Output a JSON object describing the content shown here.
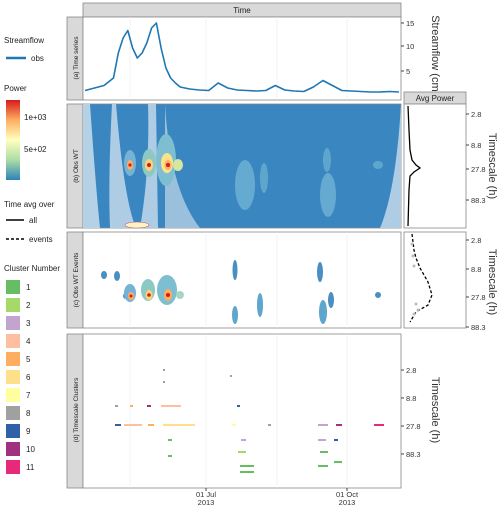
{
  "legend": {
    "streamflow": {
      "title": "Streamflow",
      "entry": "obs",
      "color": "#1f77b4"
    },
    "power": {
      "title": "Power",
      "ticks": [
        "1e+03",
        "5e+02"
      ],
      "colors": [
        "#d7191c",
        "#fdae61",
        "#ffffbf",
        "#abdda4",
        "#2b83ba"
      ]
    },
    "avg": {
      "title": "Time avg over",
      "entries": [
        "all",
        "events"
      ]
    },
    "clusters": {
      "title": "Cluster Number",
      "items": [
        {
          "label": "1",
          "color": "#66bd63"
        },
        {
          "label": "2",
          "color": "#a6d96a"
        },
        {
          "label": "3",
          "color": "#c2a5cf"
        },
        {
          "label": "4",
          "color": "#fdbf9f"
        },
        {
          "label": "5",
          "color": "#fdae61"
        },
        {
          "label": "6",
          "color": "#fee08b"
        },
        {
          "label": "7",
          "color": "#ffffa0"
        },
        {
          "label": "8",
          "color": "#a0a0a0"
        },
        {
          "label": "9",
          "color": "#3060a8"
        },
        {
          "label": "10",
          "color": "#a03080"
        },
        {
          "label": "11",
          "color": "#e8287a"
        }
      ]
    }
  },
  "panels": {
    "time_strip": "Time",
    "avg_strip": "Avg Power",
    "a": {
      "strip": "(a) Time series",
      "ylabel": "Streamflow (cms)",
      "ticks": [
        "15",
        "10",
        "5"
      ]
    },
    "b": {
      "strip": "(b) Obs WT",
      "ylabel": "Timescale (h)",
      "ticks": [
        "2.8",
        "8.8",
        "27.8",
        "88.3"
      ]
    },
    "c": {
      "strip": "(c) Obs WT Events",
      "ylabel": "Timescale (h)",
      "ticks": [
        "2.8",
        "8.8",
        "27.8",
        "88.3"
      ]
    },
    "d": {
      "strip": "(d) Timescale Clusters",
      "ylabel": "Timescale (h)",
      "ticks": [
        "2.8",
        "8.8",
        "27.8",
        "88.3"
      ]
    },
    "xticks": [
      {
        "line1": "01 Jul",
        "line2": "2013"
      },
      {
        "line1": "01 Oct",
        "line2": "2013"
      }
    ]
  },
  "chart_data": [
    {
      "type": "line",
      "series": [
        {
          "name": "obs",
          "values_x_day": [
            0,
            10,
            20,
            30,
            35,
            40,
            45,
            50,
            55,
            60,
            65,
            70,
            75,
            80,
            85,
            90,
            95,
            100,
            105,
            110,
            120,
            130,
            140,
            150,
            160,
            170,
            180,
            190,
            200,
            210,
            220,
            230,
            240,
            250,
            260,
            270,
            280,
            290,
            300,
            310,
            320,
            330
          ],
          "values": [
            1.5,
            2,
            2.5,
            4,
            9,
            12,
            13.5,
            10,
            8,
            9,
            11,
            14,
            15,
            10,
            6,
            4,
            3,
            2.2,
            2,
            1.8,
            1.6,
            1.5,
            3,
            2,
            1.6,
            1.5,
            1.4,
            1.5,
            2.5,
            1.6,
            1.4,
            1.3,
            2.2,
            3.5,
            2.5,
            1.5,
            1.4,
            1.3,
            1.2,
            1.2,
            1.3,
            1.2
          ]
        }
      ],
      "ylim": [
        0,
        16
      ]
    },
    {
      "type": "heatmap",
      "note_timescale_axis": "log",
      "avg_power_all_peak_at_h": 27.8
    },
    {
      "type": "heatmap",
      "avg_power_events_peak_at_h": 27.8
    },
    {
      "type": "scatter",
      "clusters_present": [
        "1",
        "2",
        "3",
        "4",
        "5",
        "6",
        "7",
        "8",
        "9",
        "10",
        "11"
      ]
    }
  ]
}
